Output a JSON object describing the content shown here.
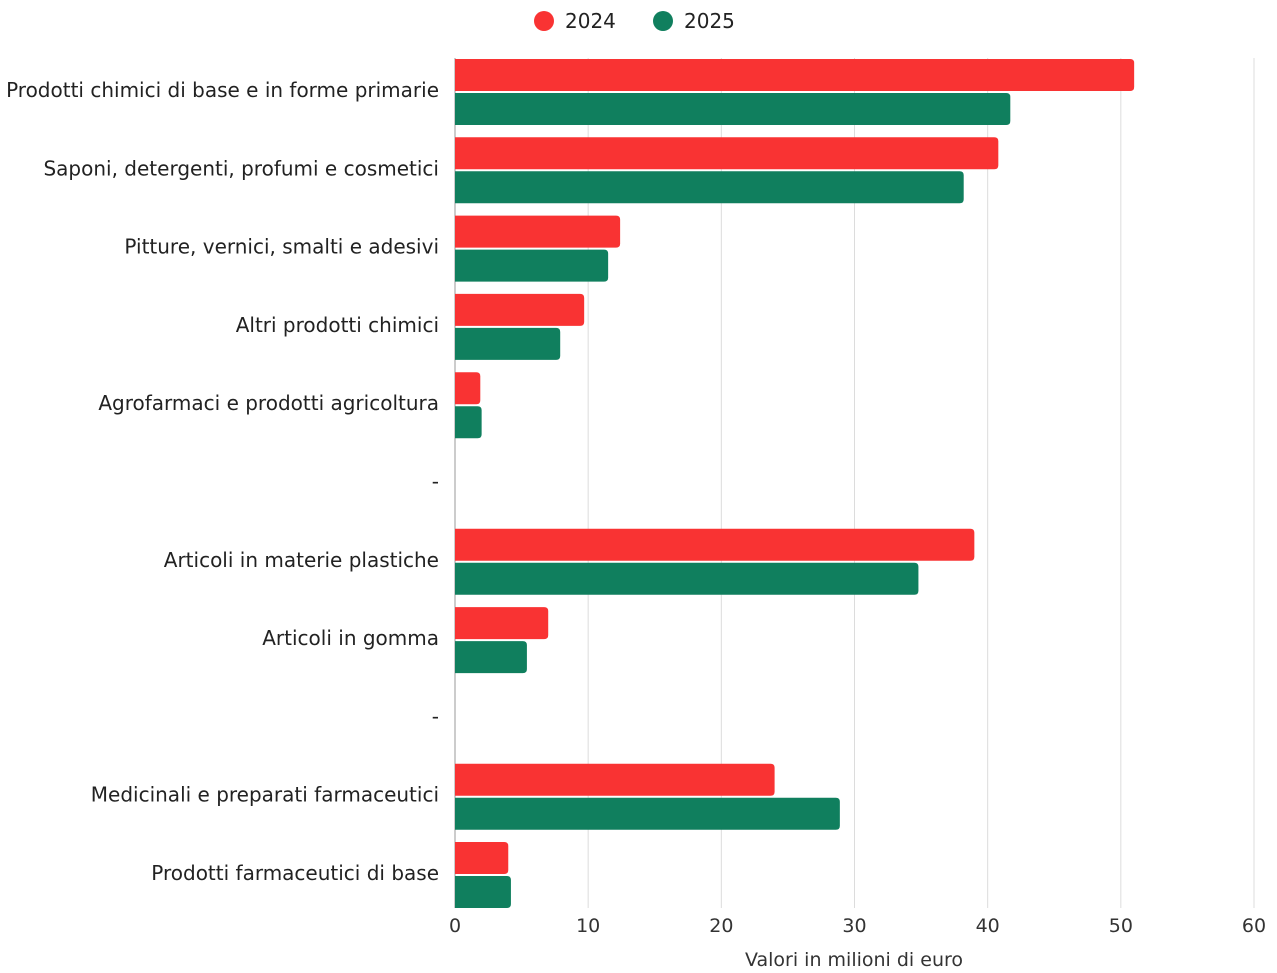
{
  "chart_data": {
    "type": "bar",
    "orientation": "horizontal",
    "categories": [
      "Prodotti chimici di base e in forme primarie",
      "Saponi, detergenti, profumi e cosmetici",
      "Pitture, vernici, smalti e adesivi",
      "Altri prodotti chimici",
      "Agrofarmaci e prodotti agricoltura",
      "-",
      "Articoli in materie plastiche",
      "Articoli in gomma",
      "-",
      "Medicinali e preparati farmaceutici",
      "Prodotti farmaceutici di base"
    ],
    "series": [
      {
        "name": "2024",
        "color": "#f93333",
        "values": [
          51,
          40.8,
          12.4,
          9.7,
          1.9,
          null,
          39,
          7,
          null,
          24,
          4
        ]
      },
      {
        "name": "2025",
        "color": "#107f5e",
        "values": [
          41.7,
          38.2,
          11.5,
          7.9,
          2,
          null,
          34.8,
          5.4,
          null,
          28.9,
          4.2
        ]
      }
    ],
    "xlabel": "Valori in milioni di euro",
    "xlim": [
      0,
      60
    ],
    "xticks": [
      "0",
      "10",
      "20",
      "30",
      "40",
      "50",
      "60"
    ],
    "grid": true,
    "legend_position": "top"
  }
}
